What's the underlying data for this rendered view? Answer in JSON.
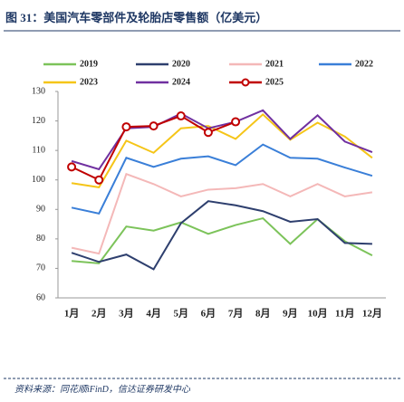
{
  "chart_data": {
    "type": "line",
    "title": "图 31：美国汽车零部件及轮胎店零售额（亿美元）",
    "source": "资料来源：同花顺iFinD，信达证券研发中心",
    "categories": [
      "1月",
      "2月",
      "3月",
      "4月",
      "5月",
      "6月",
      "7月",
      "8月",
      "9月",
      "10月",
      "11月",
      "12月"
    ],
    "ylim": [
      60,
      130
    ],
    "yticks": [
      60,
      70,
      80,
      90,
      100,
      110,
      120,
      130
    ],
    "series": [
      {
        "name": "2019",
        "color": "#7cc35a",
        "values": [
          72.5,
          71.7,
          84.2,
          82.8,
          85.6,
          81.7,
          84.7,
          87,
          78.3,
          86.7,
          79.2,
          74.4
        ]
      },
      {
        "name": "2020",
        "color": "#2e3f6e",
        "values": [
          75.3,
          72.2,
          74.7,
          69.7,
          85.3,
          92.8,
          91.4,
          89.4,
          85.8,
          86.7,
          78.6,
          78.3
        ]
      },
      {
        "name": "2021",
        "color": "#f4b8b8",
        "values": [
          77,
          75,
          102,
          98.6,
          94.4,
          96.7,
          97.2,
          98.6,
          94.4,
          98.6,
          94.4,
          95.8
        ]
      },
      {
        "name": "2022",
        "color": "#3a7fd8",
        "values": [
          90.6,
          88.6,
          107.5,
          104.4,
          107.2,
          108,
          105,
          112,
          107.5,
          107.2,
          104.2,
          101.4
        ]
      },
      {
        "name": "2023",
        "color": "#f5c518",
        "values": [
          98.9,
          97.5,
          113.3,
          109.2,
          117.5,
          118.3,
          113.9,
          122.2,
          113.6,
          119.4,
          114.7,
          107.5
        ]
      },
      {
        "name": "2024",
        "color": "#7030a0",
        "values": [
          106.4,
          103.6,
          117.5,
          118,
          122.5,
          117.5,
          119.7,
          123.6,
          113.9,
          121.9,
          113,
          109.4
        ]
      },
      {
        "name": "2025",
        "color": "#c00000",
        "markers": true,
        "values": [
          104.4,
          100,
          118,
          118.3,
          121.7,
          116.1,
          119.7,
          null,
          null,
          null,
          null,
          null
        ]
      }
    ]
  }
}
